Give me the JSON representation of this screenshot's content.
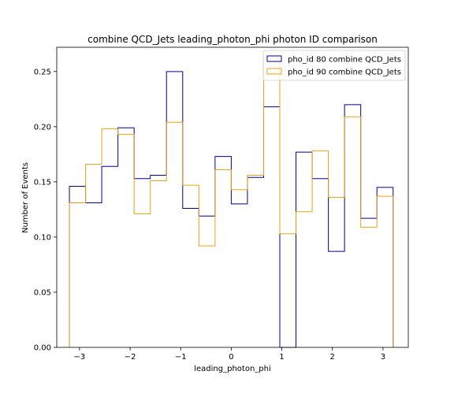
{
  "chart_data": {
    "type": "step-histogram",
    "title": "combine QCD_Jets leading_photon_phi photon ID comparison",
    "xlabel": "leading_photon_phi",
    "ylabel": "Number of Events",
    "xlim": [
      -3.45,
      3.5
    ],
    "ylim": [
      0,
      0.272
    ],
    "xticks": [
      -3,
      -2,
      -1,
      0,
      1,
      2,
      3
    ],
    "xtick_labels": [
      "−3",
      "−2",
      "−1",
      "0",
      "1",
      "2",
      "3"
    ],
    "yticks": [
      0.0,
      0.05,
      0.1,
      0.15,
      0.2,
      0.25
    ],
    "ytick_labels": [
      "0.00",
      "0.05",
      "0.10",
      "0.15",
      "0.20",
      "0.25"
    ],
    "bin_edges": [
      -3.2,
      -2.88,
      -2.56,
      -2.24,
      -1.92,
      -1.6,
      -1.28,
      -0.96,
      -0.64,
      -0.32,
      0.0,
      0.32,
      0.64,
      0.96,
      1.28,
      1.6,
      1.92,
      2.24,
      2.56,
      2.88,
      3.2
    ],
    "legend_position": "upper right",
    "series": [
      {
        "name": "pho_id 80 combine QCD_Jets",
        "color": "#00008b",
        "values": [
          0.146,
          0.131,
          0.164,
          0.199,
          0.153,
          0.156,
          0.25,
          0.126,
          0.119,
          0.173,
          0.13,
          0.154,
          0.218,
          0.0,
          0.177,
          0.153,
          0.087,
          0.22,
          0.117,
          0.145
        ]
      },
      {
        "name": "pho_id 90 combine QCD_Jets",
        "color": "#e8a317",
        "values": [
          0.131,
          0.166,
          0.198,
          0.193,
          0.121,
          0.151,
          0.204,
          0.147,
          0.092,
          0.161,
          0.143,
          0.156,
          0.262,
          0.103,
          0.123,
          0.178,
          0.136,
          0.209,
          0.109,
          0.137
        ]
      }
    ]
  }
}
